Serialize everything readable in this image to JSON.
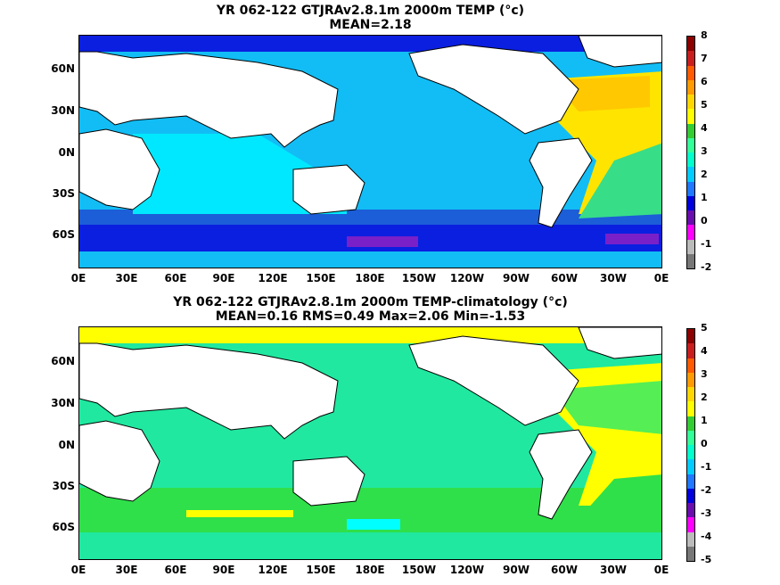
{
  "panels": [
    {
      "title_line1": "YR 062-122 GTJRAv2.8.1m 2000m TEMP (°c)",
      "title_line2": "MEAN=2.18",
      "colorbar_labels": [
        "8",
        "7",
        "6",
        "5",
        "4",
        "3",
        "2",
        "1",
        "0",
        "-1",
        "-2"
      ],
      "colorbar_colors": [
        "#8b0000",
        "#c81e1e",
        "#ff5a00",
        "#ff9a00",
        "#ffd700",
        "#ffff00",
        "#33cc33",
        "#33ff99",
        "#00ffcc",
        "#00ccff",
        "#1f78ff",
        "#0000dd",
        "#6a0dad",
        "#ff00ff",
        "#bbbbbb",
        "#777777"
      ],
      "palette": {
        "ocean_main": "#12bdf5",
        "southern": "#1c5dd8",
        "indian": "#00e8ff",
        "atlantic": "#ffe400",
        "atlantic_warm": "#ffc800",
        "atlantic_south": "#38dd88",
        "green": "#3fe36b"
      }
    },
    {
      "title_line1": "YR 062-122 GTJRAv2.8.1m 2000m TEMP-climatology (°c)",
      "title_line2": "MEAN=0.16   RMS=0.49   Max=2.06   Min=-1.53",
      "colorbar_labels": [
        "5",
        "4",
        "3",
        "2",
        "1",
        "0",
        "-1",
        "-2",
        "-3",
        "-4",
        "-5"
      ],
      "colorbar_colors": [
        "#8b0000",
        "#c81e1e",
        "#ff5a00",
        "#ff9a00",
        "#ffd700",
        "#ffff00",
        "#33cc33",
        "#33ff99",
        "#00ffcc",
        "#00ccff",
        "#1f78ff",
        "#0000dd",
        "#6a0dad",
        "#ff00ff",
        "#bbbbbb",
        "#777777"
      ],
      "palette": {
        "ocean_main": "#20e8a0",
        "southern": "#2fe04a",
        "indian": "#20e8a0",
        "atlantic": "#ffff00",
        "atlantic_warm": "#ffe000",
        "atlantic_south": "#55ee55",
        "green": "#3fe36b"
      }
    }
  ],
  "lat_labels": [
    "60N",
    "30N",
    "0N",
    "30S",
    "60S"
  ],
  "lon_labels": [
    "0E",
    "30E",
    "60E",
    "90E",
    "120E",
    "150E",
    "180E",
    "150W",
    "120W",
    "90W",
    "60W",
    "30W",
    "0E"
  ]
}
